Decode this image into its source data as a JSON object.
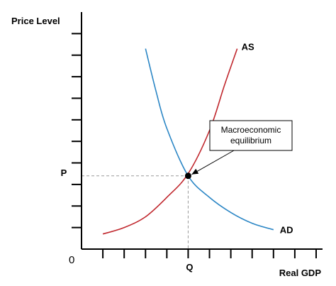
{
  "chart_data": {
    "type": "line",
    "xlabel": "Real GDP",
    "ylabel": "Price Level",
    "origin_label": "0",
    "series": [
      {
        "name": "AS",
        "color": "#c0262c",
        "points": [
          [
            1.0,
            0.7
          ],
          [
            2.0,
            1.0
          ],
          [
            3.0,
            1.5
          ],
          [
            4.0,
            2.4
          ],
          [
            5.0,
            3.5
          ],
          [
            6.0,
            5.5
          ],
          [
            6.7,
            7.6
          ],
          [
            7.3,
            9.3
          ]
        ]
      },
      {
        "name": "AD",
        "color": "#2b86c5",
        "points": [
          [
            3.0,
            9.3
          ],
          [
            3.5,
            7.3
          ],
          [
            4.0,
            5.6
          ],
          [
            5.0,
            3.4
          ],
          [
            6.0,
            2.4
          ],
          [
            7.0,
            1.7
          ],
          [
            8.0,
            1.2
          ],
          [
            9.0,
            0.9
          ]
        ]
      }
    ],
    "equilibrium": {
      "x": 5.0,
      "y": 3.4,
      "x_label": "Q",
      "y_label": "P"
    },
    "annotation": {
      "lines": [
        "Macroeconomic",
        "equilibrium"
      ]
    },
    "x_ticks": 11,
    "y_ticks": 10,
    "xlim": [
      0,
      11.3
    ],
    "ylim": [
      0,
      11
    ]
  }
}
